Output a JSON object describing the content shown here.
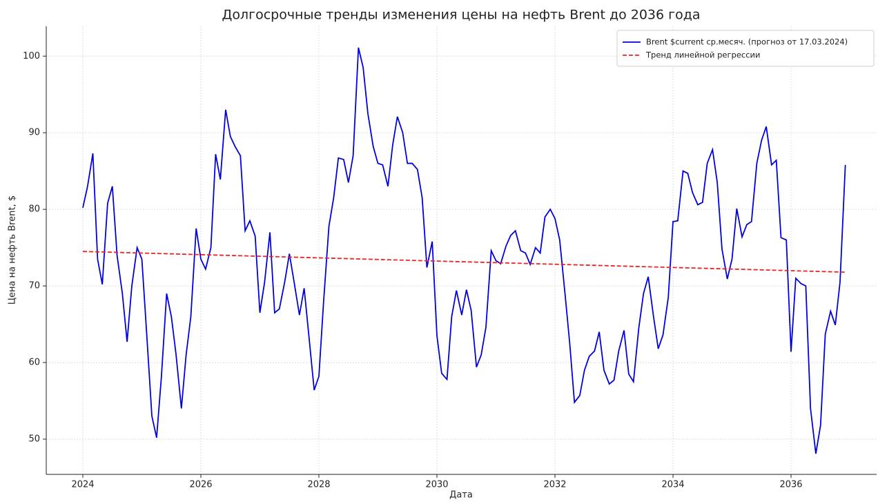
{
  "chart_data": {
    "type": "line",
    "title": "Долгосрочные тренды изменения цены на нефть Brent до 2036 года",
    "xlabel": "Дата",
    "ylabel": "Цена на нефть Brent, $",
    "xlim": [
      2023.38,
      2037.45
    ],
    "xticks": [
      2024,
      2026,
      2028,
      2030,
      2032,
      2034,
      2036
    ],
    "ylim": [
      45.4,
      103.9
    ],
    "yticks": [
      50,
      60,
      70,
      80,
      90,
      100
    ],
    "grid": true,
    "legend": "upper right",
    "series": [
      {
        "name": "Brent $current ср.месяч. (прогноз от 17.03.2024)",
        "color": "#0000dd",
        "linestyle": "solid",
        "x": [
          2024,
          2024.08,
          2024.17,
          2024.25,
          2024.33,
          2024.42,
          2024.5,
          2024.58,
          2024.67,
          2024.75,
          2024.83,
          2024.92,
          2025,
          2025.08,
          2025.17,
          2025.25,
          2025.33,
          2025.42,
          2025.5,
          2025.58,
          2025.67,
          2025.75,
          2025.83,
          2025.92,
          2026,
          2026.08,
          2026.17,
          2026.25,
          2026.33,
          2026.42,
          2026.5,
          2026.58,
          2026.67,
          2026.75,
          2026.83,
          2026.92,
          2027,
          2027.08,
          2027.17,
          2027.25,
          2027.33,
          2027.42,
          2027.5,
          2027.58,
          2027.67,
          2027.75,
          2027.83,
          2027.92,
          2028,
          2028.08,
          2028.17,
          2028.25,
          2028.33,
          2028.42,
          2028.5,
          2028.58,
          2028.67,
          2028.75,
          2028.83,
          2028.92,
          2029,
          2029.08,
          2029.17,
          2029.25,
          2029.33,
          2029.42,
          2029.5,
          2029.58,
          2029.67,
          2029.75,
          2029.83,
          2029.92,
          2030,
          2030.08,
          2030.17,
          2030.25,
          2030.33,
          2030.42,
          2030.5,
          2030.58,
          2030.67,
          2030.75,
          2030.83,
          2030.92,
          2031,
          2031.08,
          2031.17,
          2031.25,
          2031.33,
          2031.42,
          2031.5,
          2031.58,
          2031.67,
          2031.75,
          2031.83,
          2031.92,
          2032,
          2032.08,
          2032.17,
          2032.25,
          2032.33,
          2032.42,
          2032.5,
          2032.58,
          2032.67,
          2032.75,
          2032.83,
          2032.92,
          2033,
          2033.08,
          2033.17,
          2033.25,
          2033.33,
          2033.42,
          2033.5,
          2033.58,
          2033.67,
          2033.75,
          2033.83,
          2033.92,
          2034,
          2034.08,
          2034.17,
          2034.25,
          2034.33,
          2034.42,
          2034.5,
          2034.58,
          2034.67,
          2034.75,
          2034.83,
          2034.92,
          2035,
          2035.08,
          2035.17,
          2035.25,
          2035.33,
          2035.42,
          2035.5,
          2035.58,
          2035.67,
          2035.75,
          2035.83,
          2035.92,
          2036,
          2036.08,
          2036.17,
          2036.25,
          2036.33,
          2036.42,
          2036.5,
          2036.58,
          2036.67,
          2036.75,
          2036.83,
          2036.92
        ],
        "values": [
          80.2,
          83,
          87.3,
          73.5,
          70.2,
          80.8,
          83,
          74,
          69,
          62.7,
          70,
          75,
          73.5,
          64,
          53,
          50.2,
          58,
          69,
          66,
          61,
          54,
          61,
          66,
          77.5,
          73.5,
          72.2,
          75,
          87.2,
          83.9,
          93,
          89.5,
          88.2,
          87,
          77.2,
          78.5,
          76.5,
          66.5,
          70.5,
          77,
          66.5,
          67,
          70.5,
          74.2,
          70.5,
          66.2,
          69.7,
          63.5,
          56.4,
          58.2,
          68,
          77.8,
          81.5,
          86.7,
          86.5,
          83.5,
          87,
          101.1,
          98.5,
          92.5,
          88.2,
          86,
          85.8,
          83,
          88.4,
          92.1,
          90,
          86,
          86,
          85.2,
          81.5,
          72.4,
          75.8,
          63.5,
          58.6,
          57.8,
          66,
          69.4,
          66.2,
          69.5,
          66.8,
          59.4,
          61,
          64.6,
          74.6,
          73.3,
          72.9,
          75.2,
          76.6,
          77.2,
          74.6,
          74.3,
          72.8,
          75,
          74.3,
          79,
          80,
          78.8,
          76,
          69,
          62.5,
          54.8,
          55.7,
          59,
          60.8,
          61.5,
          64,
          59,
          57.2,
          57.7,
          61.5,
          64.2,
          58.5,
          57.5,
          64.5,
          69,
          71.2,
          66,
          61.8,
          63.6,
          68.5,
          78.4,
          78.5,
          85,
          84.7,
          82.2,
          80.6,
          80.9,
          86,
          87.8,
          83.5,
          74.8,
          70.9,
          73.5,
          80.1,
          76.4,
          78,
          78.4,
          86,
          89,
          90.8,
          85.8,
          86.4,
          76.3,
          76,
          61.4,
          71,
          70.3,
          70,
          54,
          48.1,
          51.8,
          63.7,
          66.7,
          64.9,
          70.5,
          85.8
        ]
      },
      {
        "name": "Тренд линейной регрессии",
        "color": "#ee2222",
        "linestyle": "dashed",
        "x": [
          2024,
          2036.92
        ],
        "values": [
          74.5,
          71.8
        ]
      }
    ]
  }
}
